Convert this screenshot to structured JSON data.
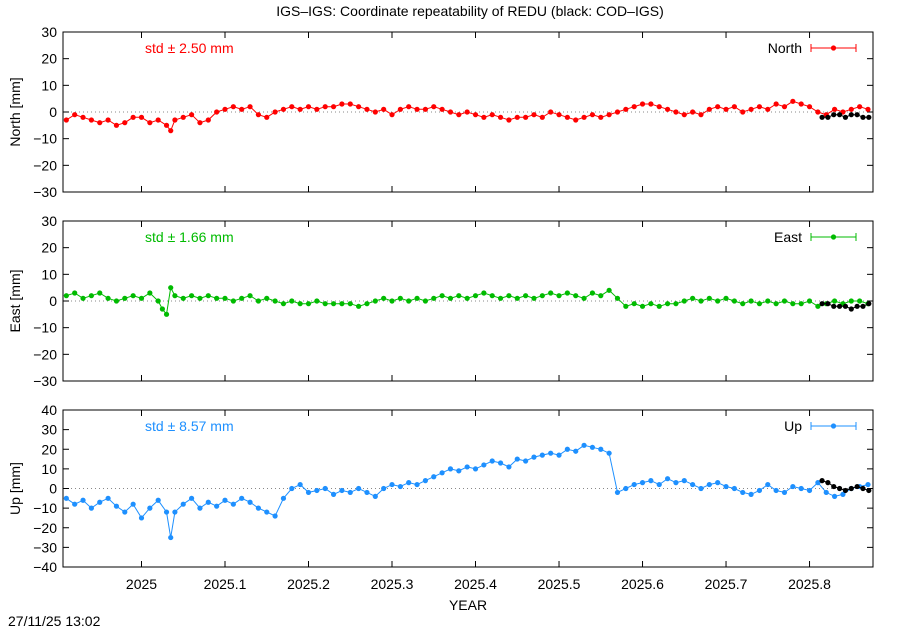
{
  "page": {
    "title": "IGS–IGS: Coordinate repeatability of REDU (black: COD–IGS)",
    "timestamp": "27/11/25 13:02"
  },
  "chart_data": [
    {
      "type": "scatter",
      "ylabel": "North [mm]",
      "ylim": [
        -30,
        30
      ],
      "yticks": [
        -30,
        -20,
        -10,
        0,
        10,
        20,
        30
      ],
      "xlim": [
        2024.906,
        2025.876
      ],
      "std_text": "std ± 2.50 mm",
      "color": "#ff0000",
      "series": [
        {
          "name": "North",
          "x": [
            2024.91,
            2024.92,
            2024.93,
            2024.94,
            2024.95,
            2024.96,
            2024.97,
            2024.98,
            2024.99,
            2025.0,
            2025.01,
            2025.02,
            2025.03,
            2025.035,
            2025.04,
            2025.05,
            2025.06,
            2025.07,
            2025.08,
            2025.09,
            2025.1,
            2025.11,
            2025.12,
            2025.13,
            2025.14,
            2025.15,
            2025.16,
            2025.17,
            2025.18,
            2025.19,
            2025.2,
            2025.21,
            2025.22,
            2025.23,
            2025.24,
            2025.25,
            2025.26,
            2025.27,
            2025.28,
            2025.29,
            2025.3,
            2025.31,
            2025.32,
            2025.33,
            2025.34,
            2025.35,
            2025.36,
            2025.37,
            2025.38,
            2025.39,
            2025.4,
            2025.41,
            2025.42,
            2025.43,
            2025.44,
            2025.45,
            2025.46,
            2025.47,
            2025.48,
            2025.49,
            2025.5,
            2025.51,
            2025.52,
            2025.53,
            2025.54,
            2025.55,
            2025.56,
            2025.57,
            2025.58,
            2025.59,
            2025.6,
            2025.61,
            2025.62,
            2025.63,
            2025.64,
            2025.65,
            2025.66,
            2025.67,
            2025.68,
            2025.69,
            2025.7,
            2025.71,
            2025.72,
            2025.73,
            2025.74,
            2025.75,
            2025.76,
            2025.77,
            2025.78,
            2025.79,
            2025.8,
            2025.81,
            2025.82,
            2025.83,
            2025.84,
            2025.85,
            2025.86,
            2025.87
          ],
          "y": [
            -3,
            -1,
            -2,
            -3,
            -4,
            -3,
            -5,
            -4,
            -2,
            -2,
            -4,
            -3,
            -5,
            -7,
            -3,
            -2,
            -1,
            -4,
            -3,
            0,
            1,
            2,
            1,
            2,
            -1,
            -2,
            0,
            1,
            2,
            1,
            2,
            1,
            2,
            2,
            3,
            3,
            2,
            1,
            0,
            1,
            -1,
            1,
            2,
            1,
            1,
            2,
            1,
            0,
            -1,
            0,
            -1,
            -2,
            -1,
            -2,
            -3,
            -2,
            -2,
            -1,
            -2,
            0,
            -1,
            -2,
            -3,
            -2,
            -1,
            -2,
            -1,
            0,
            1,
            2,
            3,
            3,
            2,
            1,
            0,
            -1,
            0,
            -1,
            1,
            2,
            1,
            2,
            0,
            1,
            2,
            1,
            3,
            2,
            4,
            3,
            2,
            0,
            -1,
            1,
            0,
            1,
            2,
            1
          ]
        },
        {
          "name": "COD–IGS",
          "x": [
            2025.815,
            2025.822,
            2025.829,
            2025.836,
            2025.843,
            2025.85,
            2025.857,
            2025.864,
            2025.871
          ],
          "y": [
            -2,
            -2,
            -1,
            -1,
            -2,
            -1,
            -1,
            -2,
            -2
          ]
        }
      ]
    },
    {
      "type": "scatter",
      "ylabel": "East [mm]",
      "ylim": [
        -30,
        30
      ],
      "yticks": [
        -30,
        -20,
        -10,
        0,
        10,
        20,
        30
      ],
      "xlim": [
        2024.906,
        2025.876
      ],
      "std_text": "std ± 1.66 mm",
      "color": "#00bb00",
      "series": [
        {
          "name": "East",
          "x": [
            2024.91,
            2024.92,
            2024.93,
            2024.94,
            2024.95,
            2024.96,
            2024.97,
            2024.98,
            2024.99,
            2025.0,
            2025.01,
            2025.02,
            2025.025,
            2025.03,
            2025.035,
            2025.04,
            2025.05,
            2025.06,
            2025.07,
            2025.08,
            2025.09,
            2025.1,
            2025.11,
            2025.12,
            2025.13,
            2025.14,
            2025.15,
            2025.16,
            2025.17,
            2025.18,
            2025.19,
            2025.2,
            2025.21,
            2025.22,
            2025.23,
            2025.24,
            2025.25,
            2025.26,
            2025.27,
            2025.28,
            2025.29,
            2025.3,
            2025.31,
            2025.32,
            2025.33,
            2025.34,
            2025.35,
            2025.36,
            2025.37,
            2025.38,
            2025.39,
            2025.4,
            2025.41,
            2025.42,
            2025.43,
            2025.44,
            2025.45,
            2025.46,
            2025.47,
            2025.48,
            2025.49,
            2025.5,
            2025.51,
            2025.52,
            2025.53,
            2025.54,
            2025.55,
            2025.56,
            2025.57,
            2025.58,
            2025.59,
            2025.6,
            2025.61,
            2025.62,
            2025.63,
            2025.64,
            2025.65,
            2025.66,
            2025.67,
            2025.68,
            2025.69,
            2025.7,
            2025.71,
            2025.72,
            2025.73,
            2025.74,
            2025.75,
            2025.76,
            2025.77,
            2025.78,
            2025.79,
            2025.8,
            2025.81,
            2025.82,
            2025.83,
            2025.84,
            2025.85,
            2025.86,
            2025.87
          ],
          "y": [
            2,
            3,
            1,
            2,
            3,
            1,
            0,
            1,
            2,
            1,
            3,
            0,
            -3,
            -5,
            5,
            2,
            1,
            2,
            1,
            2,
            1,
            1,
            0,
            1,
            2,
            0,
            1,
            0,
            -1,
            0,
            -1,
            -1,
            0,
            -1,
            -1,
            -1,
            -1,
            -2,
            -1,
            0,
            1,
            0,
            1,
            0,
            1,
            0,
            1,
            2,
            1,
            2,
            1,
            2,
            3,
            2,
            1,
            2,
            1,
            2,
            1,
            2,
            3,
            2,
            3,
            2,
            1,
            3,
            2,
            4,
            1,
            -2,
            -1,
            -2,
            -1,
            -2,
            -1,
            -1,
            0,
            1,
            0,
            1,
            0,
            1,
            0,
            -1,
            0,
            -1,
            0,
            -1,
            0,
            -1,
            -1,
            0,
            -2,
            -1,
            0,
            -1,
            0,
            0,
            -1
          ]
        },
        {
          "name": "COD–IGS",
          "x": [
            2025.815,
            2025.822,
            2025.829,
            2025.836,
            2025.843,
            2025.85,
            2025.857,
            2025.864,
            2025.871
          ],
          "y": [
            -1,
            -1,
            -2,
            -2,
            -2,
            -3,
            -2,
            -2,
            -1
          ]
        }
      ]
    },
    {
      "type": "scatter",
      "ylabel": "Up [mm]",
      "ylim": [
        -40,
        40
      ],
      "yticks": [
        -40,
        -30,
        -20,
        -10,
        0,
        10,
        20,
        30,
        40
      ],
      "xlim": [
        2024.906,
        2025.876
      ],
      "xticks": [
        2025,
        2025.1,
        2025.2,
        2025.3,
        2025.4,
        2025.5,
        2025.6,
        2025.7,
        2025.8
      ],
      "xticklabels": [
        "2025",
        "2025.1",
        "2025.2",
        "2025.3",
        "2025.4",
        "2025.5",
        "2025.6",
        "2025.7",
        "2025.8"
      ],
      "xlabel": "YEAR",
      "std_text": "std ± 8.57 mm",
      "color": "#1e90ff",
      "series": [
        {
          "name": "Up",
          "x": [
            2024.91,
            2024.92,
            2024.93,
            2024.94,
            2024.95,
            2024.96,
            2024.97,
            2024.98,
            2024.99,
            2025.0,
            2025.01,
            2025.02,
            2025.03,
            2025.035,
            2025.04,
            2025.05,
            2025.06,
            2025.07,
            2025.08,
            2025.09,
            2025.1,
            2025.11,
            2025.12,
            2025.13,
            2025.14,
            2025.15,
            2025.16,
            2025.17,
            2025.18,
            2025.19,
            2025.2,
            2025.21,
            2025.22,
            2025.23,
            2025.24,
            2025.25,
            2025.26,
            2025.27,
            2025.28,
            2025.29,
            2025.3,
            2025.31,
            2025.32,
            2025.33,
            2025.34,
            2025.35,
            2025.36,
            2025.37,
            2025.38,
            2025.39,
            2025.4,
            2025.41,
            2025.42,
            2025.43,
            2025.44,
            2025.45,
            2025.46,
            2025.47,
            2025.48,
            2025.49,
            2025.5,
            2025.51,
            2025.52,
            2025.53,
            2025.54,
            2025.55,
            2025.56,
            2025.57,
            2025.58,
            2025.59,
            2025.6,
            2025.61,
            2025.62,
            2025.63,
            2025.64,
            2025.65,
            2025.66,
            2025.67,
            2025.68,
            2025.69,
            2025.7,
            2025.71,
            2025.72,
            2025.73,
            2025.74,
            2025.75,
            2025.76,
            2025.77,
            2025.78,
            2025.79,
            2025.8,
            2025.81,
            2025.82,
            2025.83,
            2025.84,
            2025.85,
            2025.86,
            2025.87
          ],
          "y": [
            -5,
            -8,
            -6,
            -10,
            -7,
            -5,
            -9,
            -12,
            -8,
            -15,
            -10,
            -6,
            -12,
            -25,
            -12,
            -8,
            -5,
            -10,
            -7,
            -9,
            -6,
            -8,
            -5,
            -7,
            -10,
            -12,
            -14,
            -5,
            0,
            2,
            -2,
            -1,
            0,
            -3,
            -1,
            -2,
            0,
            -2,
            -4,
            0,
            2,
            1,
            3,
            2,
            4,
            6,
            8,
            10,
            9,
            11,
            10,
            12,
            14,
            13,
            11,
            15,
            14,
            16,
            17,
            18,
            17,
            20,
            19,
            22,
            21,
            20,
            18,
            -2,
            0,
            2,
            3,
            4,
            2,
            5,
            3,
            4,
            2,
            0,
            2,
            3,
            1,
            0,
            -2,
            -3,
            -1,
            2,
            -1,
            -2,
            1,
            0,
            -1,
            3,
            -2,
            -4,
            -3,
            0,
            1,
            2
          ]
        },
        {
          "name": "COD–IGS",
          "x": [
            2025.815,
            2025.822,
            2025.829,
            2025.836,
            2025.843,
            2025.85,
            2025.857,
            2025.864,
            2025.871
          ],
          "y": [
            4,
            3,
            1,
            0,
            -1,
            0,
            1,
            0,
            -1
          ]
        }
      ]
    }
  ]
}
